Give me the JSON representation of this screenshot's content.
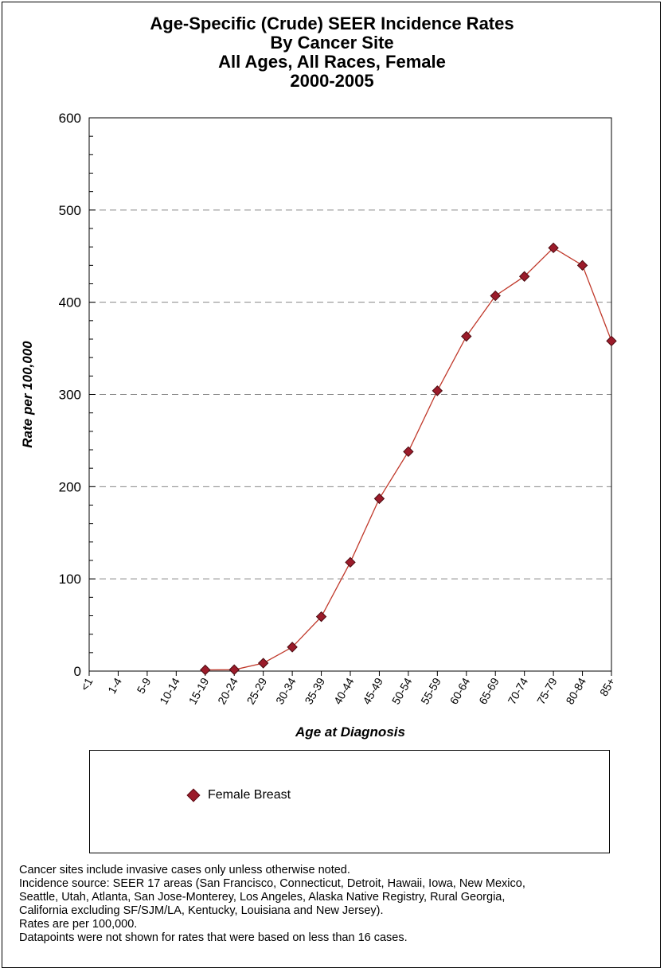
{
  "chart_data": {
    "type": "line",
    "title_lines": [
      "Age-Specific (Crude) SEER Incidence Rates",
      "By Cancer Site",
      "All Ages, All Races, Female",
      "2000-2005"
    ],
    "xlabel": "Age at Diagnosis",
    "ylabel": "Rate per 100,000",
    "categories": [
      "<1",
      "1-4",
      "5-9",
      "10-14",
      "15-19",
      "20-24",
      "25-29",
      "30-34",
      "35-39",
      "40-44",
      "45-49",
      "50-54",
      "55-59",
      "60-64",
      "65-69",
      "70-74",
      "75-79",
      "80-84",
      "85+"
    ],
    "ylim": [
      0,
      600
    ],
    "yticks": [
      "0",
      "100",
      "200",
      "300",
      "400",
      "500",
      "600"
    ],
    "grid": "horizontal dashed",
    "legend_placement": "below",
    "series": [
      {
        "name": "Female Breast",
        "color": "#c0392b",
        "marker_color": "#9b1b2a",
        "values": [
          null,
          null,
          null,
          null,
          1.3,
          1.5,
          8.6,
          26.0,
          59.0,
          118.0,
          187.0,
          238.0,
          304.0,
          363.0,
          407.0,
          428.0,
          459.0,
          440.0,
          358.0
        ]
      }
    ]
  },
  "footnotes": [
    "Cancer sites include invasive cases only unless otherwise noted.",
    "Incidence source: SEER 17 areas (San Francisco, Connecticut, Detroit, Hawaii, Iowa, New Mexico,",
    "Seattle, Utah, Atlanta, San Jose-Monterey, Los Angeles, Alaska Native Registry, Rural Georgia,",
    "California excluding SF/SJM/LA, Kentucky, Louisiana and New Jersey).",
    "Rates are per 100,000.",
    "Datapoints were not shown for rates that were based on less than 16 cases."
  ]
}
